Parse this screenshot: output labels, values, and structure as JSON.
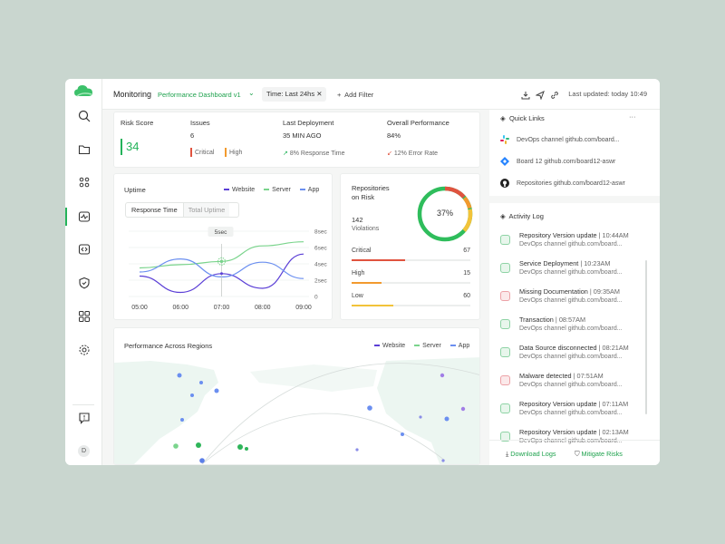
{
  "topbar": {
    "title": "Monitoring",
    "dashboard": "Performance Dashboard v1",
    "time_filter": "Time: Last 24hs",
    "add_filter": "Add Filter",
    "last_updated": "Last updated: today 10:49"
  },
  "kpis": {
    "risk_score": {
      "label": "Risk Score",
      "value": "34"
    },
    "issues": {
      "label": "Issues",
      "value": "6",
      "critical": "Critical",
      "high": "High"
    },
    "last_deployment": {
      "label": "Last Deployment",
      "value": "35 MIN AGO",
      "note": "8% Response Time"
    },
    "overall": {
      "label": "Overall Performance",
      "value": "84%",
      "note": "12% Error Rate"
    }
  },
  "uptime": {
    "title": "Uptime",
    "legend": [
      "Website",
      "Server",
      "App"
    ],
    "tabs": [
      "Response Time",
      "Total Uptime"
    ],
    "tooltip": "5sec"
  },
  "chart_data": {
    "type": "line",
    "x": [
      "05:00",
      "06:00",
      "07:00",
      "08:00",
      "09:00"
    ],
    "y_ticks": [
      "8sec",
      "6sec",
      "4sec",
      "2sec",
      "0"
    ],
    "ylim": [
      0,
      8
    ],
    "series": [
      {
        "name": "Website",
        "values": [
          2.5,
          0.5,
          2.8,
          1.0,
          5.2
        ]
      },
      {
        "name": "Server",
        "values": [
          3.5,
          3.9,
          4.3,
          6.2,
          6.7
        ]
      },
      {
        "name": "App",
        "values": [
          3.0,
          4.6,
          2.4,
          4.2,
          2.2
        ]
      }
    ]
  },
  "repos": {
    "title_line1": "Repositories",
    "title_line2": "on Risk",
    "violations": "142",
    "violations_label": "Violations",
    "percent": "37%",
    "rows": [
      {
        "label": "Critical",
        "value": "67",
        "fill": 0.45,
        "color": "#e0533f"
      },
      {
        "label": "High",
        "value": "15",
        "fill": 0.25,
        "color": "#f29a2e"
      },
      {
        "label": "Low",
        "value": "60",
        "fill": 0.35,
        "color": "#f2c33a"
      }
    ]
  },
  "regions": {
    "title": "Performance Across Regions",
    "legend": [
      "Website",
      "Server",
      "App"
    ]
  },
  "quick_links": {
    "title": "Quick Links",
    "items": [
      {
        "icon": "slack-icon",
        "text": "DevOps channel github.com/board..."
      },
      {
        "icon": "jira-icon",
        "text": "Board 12 github.com/board12-aswr"
      },
      {
        "icon": "github-icon",
        "text": "Repositories github.com/board12-aswr"
      }
    ]
  },
  "activity": {
    "title": "Activity Log",
    "items": [
      {
        "title": "Repository Version update",
        "time": "10:44AM",
        "sub": "DevOps channel github.com/board...",
        "status": "ok"
      },
      {
        "title": "Service Deployment",
        "time": "10:23AM",
        "sub": "DevOps channel github.com/board...",
        "status": "ok"
      },
      {
        "title": "Missing Documentation",
        "time": "09:35AM",
        "sub": "DevOps channel github.com/board...",
        "status": "bad"
      },
      {
        "title": "Transaction",
        "time": "08:57AM",
        "sub": "DevOps channel github.com/board...",
        "status": "ok"
      },
      {
        "title": "Data Source disconnected",
        "time": "08:21AM",
        "sub": "DevOps channel github.com/board...",
        "status": "ok"
      },
      {
        "title": "Malware detected",
        "time": "07:51AM",
        "sub": "DevOps channel github.com/board...",
        "status": "bad"
      },
      {
        "title": "Repository Version update",
        "time": "07:11AM",
        "sub": "DevOps channel github.com/board...",
        "status": "ok"
      },
      {
        "title": "Repository Version update",
        "time": "02:13AM",
        "sub": "DevOps channel github.com/board...",
        "status": "ok"
      }
    ],
    "download": "Download Logs",
    "mitigate": "Mitigate Risks"
  },
  "avatar": "D",
  "colors": {
    "website": "#5b3fd6",
    "server": "#7ad48c",
    "app": "#6b8ff0",
    "accent": "#1fa24e"
  }
}
